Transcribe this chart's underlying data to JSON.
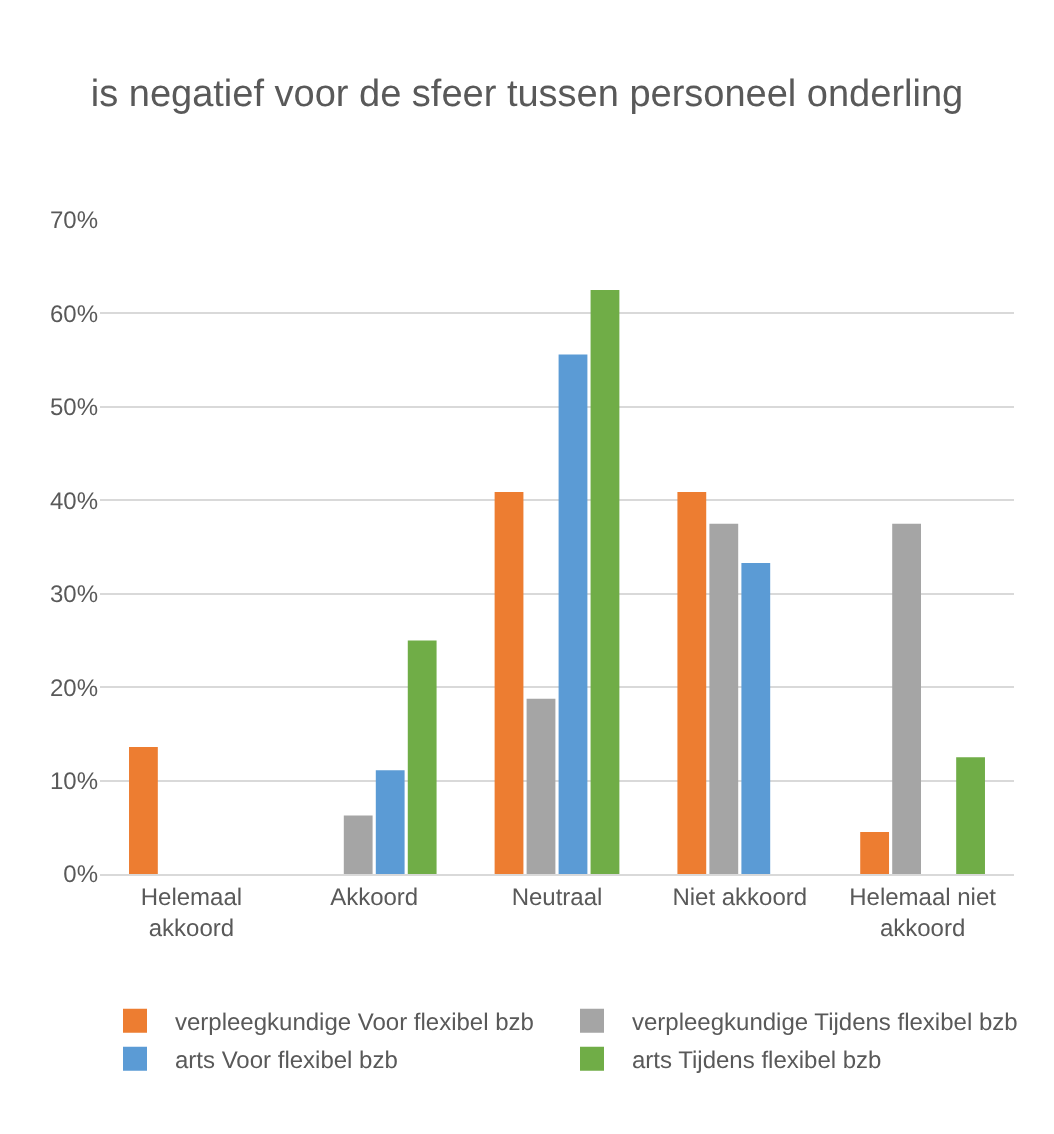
{
  "chart_data": {
    "type": "bar",
    "title": "is negatief voor de sfeer tussen personeel onderling",
    "categories": [
      "Helemaal akkoord",
      "Akkoord",
      "Neutraal",
      "Niet akkoord",
      "Helemaal niet akkoord"
    ],
    "series": [
      {
        "name": "verpleegkundige Voor flexibel bzb",
        "color": "#ed7d31",
        "values": [
          13.6,
          0,
          40.9,
          40.9,
          4.5
        ]
      },
      {
        "name": "verpleegkundige Tijdens flexibel bzb",
        "color": "#a5a5a5",
        "values": [
          0,
          6.25,
          18.75,
          37.5,
          37.5
        ]
      },
      {
        "name": "arts Voor flexibel bzb",
        "color": "#5b9bd5",
        "values": [
          0,
          11.1,
          55.6,
          33.3,
          0
        ]
      },
      {
        "name": "arts Tijdens flexibel bzb",
        "color": "#70ad47",
        "values": [
          0,
          25,
          62.5,
          0,
          12.5
        ]
      }
    ],
    "ylim": [
      0,
      70
    ],
    "yticks": [
      {
        "value": 0,
        "label": "0%"
      },
      {
        "value": 10,
        "label": "10%"
      },
      {
        "value": 20,
        "label": "20%"
      },
      {
        "value": 30,
        "label": "30%"
      },
      {
        "value": 40,
        "label": "40%"
      },
      {
        "value": 50,
        "label": "50%"
      },
      {
        "value": 60,
        "label": "60%"
      },
      {
        "value": 70,
        "label": "70%"
      }
    ],
    "grid": "y",
    "legend": "bottom"
  }
}
